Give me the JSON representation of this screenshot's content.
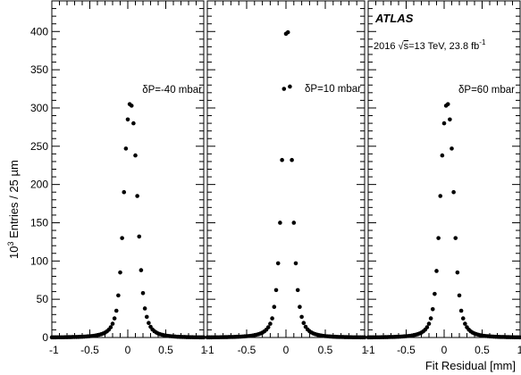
{
  "chart_data": {
    "type": "scatter",
    "ylabel_prefix": "10",
    "ylabel_exp": "3",
    "ylabel_rest": " Entries / 25 µm",
    "xlabel": "Fit Residual [mm]",
    "xlim": [
      -1,
      1
    ],
    "ylim": [
      0,
      440
    ],
    "x_ticks": [
      -1,
      -0.5,
      0,
      0.5,
      1
    ],
    "x_tick_labels": [
      "-1",
      "-0.5",
      "0",
      "0.5",
      "1"
    ],
    "y_ticks": [
      0,
      50,
      100,
      150,
      200,
      250,
      300,
      350,
      400
    ],
    "y_tick_labels": [
      "0",
      "50",
      "100",
      "150",
      "200",
      "250",
      "300",
      "350",
      "400"
    ],
    "atlas_label": "ATLAS",
    "energy_pre": "2016 ",
    "energy_sqrt": "√",
    "energy_s": "s",
    "energy_post": "=13 TeV, 23.8 fb",
    "energy_exp": "-1",
    "series": [
      {
        "name": "δP=-40 mbar",
        "points": [
          [
            -1.0,
            0.2
          ],
          [
            -0.975,
            0.2
          ],
          [
            -0.95,
            0.2
          ],
          [
            -0.925,
            0.3
          ],
          [
            -0.9,
            0.3
          ],
          [
            -0.875,
            0.3
          ],
          [
            -0.85,
            0.3
          ],
          [
            -0.825,
            0.4
          ],
          [
            -0.8,
            0.4
          ],
          [
            -0.775,
            0.5
          ],
          [
            -0.75,
            0.5
          ],
          [
            -0.725,
            0.6
          ],
          [
            -0.7,
            0.7
          ],
          [
            -0.675,
            0.7
          ],
          [
            -0.65,
            0.8
          ],
          [
            -0.625,
            0.9
          ],
          [
            -0.6,
            1.0
          ],
          [
            -0.575,
            1.1
          ],
          [
            -0.55,
            1.3
          ],
          [
            -0.525,
            1.5
          ],
          [
            -0.5,
            1.7
          ],
          [
            -0.475,
            1.9
          ],
          [
            -0.45,
            2.2
          ],
          [
            -0.425,
            2.6
          ],
          [
            -0.4,
            3.0
          ],
          [
            -0.375,
            3.6
          ],
          [
            -0.35,
            4.3
          ],
          [
            -0.325,
            5.2
          ],
          [
            -0.3,
            6.4
          ],
          [
            -0.275,
            8.0
          ],
          [
            -0.25,
            10.2
          ],
          [
            -0.225,
            13.4
          ],
          [
            -0.2,
            18.0
          ],
          [
            -0.175,
            25.0
          ],
          [
            -0.15,
            35.0
          ],
          [
            -0.125,
            55.0
          ],
          [
            -0.1,
            85.0
          ],
          [
            -0.075,
            130.0
          ],
          [
            -0.05,
            190.0
          ],
          [
            -0.025,
            247.0
          ],
          [
            0.0,
            285.0
          ],
          [
            0.025,
            305.0
          ],
          [
            0.05,
            303.0
          ],
          [
            0.075,
            280.0
          ],
          [
            0.1,
            238.0
          ],
          [
            0.125,
            185.0
          ],
          [
            0.15,
            132.0
          ],
          [
            0.175,
            88.0
          ],
          [
            0.2,
            58.0
          ],
          [
            0.225,
            38.0
          ],
          [
            0.25,
            27.0
          ],
          [
            0.275,
            19.0
          ],
          [
            0.3,
            14.0
          ],
          [
            0.325,
            10.5
          ],
          [
            0.35,
            8.2
          ],
          [
            0.375,
            6.5
          ],
          [
            0.4,
            5.2
          ],
          [
            0.425,
            4.3
          ],
          [
            0.45,
            3.6
          ],
          [
            0.475,
            3.0
          ],
          [
            0.5,
            2.5
          ],
          [
            0.525,
            2.1
          ],
          [
            0.55,
            1.8
          ],
          [
            0.575,
            1.6
          ],
          [
            0.6,
            1.4
          ],
          [
            0.625,
            1.2
          ],
          [
            0.65,
            1.0
          ],
          [
            0.675,
            0.9
          ],
          [
            0.7,
            0.8
          ],
          [
            0.725,
            0.7
          ],
          [
            0.75,
            0.6
          ],
          [
            0.775,
            0.5
          ],
          [
            0.8,
            0.5
          ],
          [
            0.825,
            0.4
          ],
          [
            0.85,
            0.4
          ],
          [
            0.875,
            0.3
          ],
          [
            0.9,
            0.3
          ],
          [
            0.925,
            0.3
          ],
          [
            0.95,
            0.2
          ],
          [
            0.975,
            0.2
          ],
          [
            1.0,
            0.2
          ]
        ]
      },
      {
        "name": "δP=10 mbar",
        "points": [
          [
            -1.0,
            0.2
          ],
          [
            -0.975,
            0.2
          ],
          [
            -0.95,
            0.2
          ],
          [
            -0.925,
            0.3
          ],
          [
            -0.9,
            0.3
          ],
          [
            -0.875,
            0.3
          ],
          [
            -0.85,
            0.3
          ],
          [
            -0.825,
            0.4
          ],
          [
            -0.8,
            0.4
          ],
          [
            -0.775,
            0.5
          ],
          [
            -0.75,
            0.5
          ],
          [
            -0.725,
            0.6
          ],
          [
            -0.7,
            0.7
          ],
          [
            -0.675,
            0.7
          ],
          [
            -0.65,
            0.8
          ],
          [
            -0.625,
            0.9
          ],
          [
            -0.6,
            1.0
          ],
          [
            -0.575,
            1.1
          ],
          [
            -0.55,
            1.3
          ],
          [
            -0.525,
            1.5
          ],
          [
            -0.5,
            1.7
          ],
          [
            -0.475,
            1.9
          ],
          [
            -0.45,
            2.2
          ],
          [
            -0.425,
            2.6
          ],
          [
            -0.4,
            3.0
          ],
          [
            -0.375,
            3.6
          ],
          [
            -0.35,
            4.3
          ],
          [
            -0.325,
            5.2
          ],
          [
            -0.3,
            6.4
          ],
          [
            -0.275,
            8.0
          ],
          [
            -0.25,
            10.2
          ],
          [
            -0.225,
            13.4
          ],
          [
            -0.2,
            18.0
          ],
          [
            -0.175,
            25.0
          ],
          [
            -0.15,
            40.0
          ],
          [
            -0.125,
            62.0
          ],
          [
            -0.1,
            97.0
          ],
          [
            -0.075,
            150.0
          ],
          [
            -0.05,
            232.0
          ],
          [
            -0.025,
            325.0
          ],
          [
            0.0,
            397.0
          ],
          [
            0.025,
            399.0
          ],
          [
            0.05,
            328.0
          ],
          [
            0.075,
            232.0
          ],
          [
            0.1,
            150.0
          ],
          [
            0.125,
            97.0
          ],
          [
            0.15,
            62.0
          ],
          [
            0.175,
            40.0
          ],
          [
            0.2,
            27.0
          ],
          [
            0.225,
            19.0
          ],
          [
            0.25,
            14.0
          ],
          [
            0.275,
            10.5
          ],
          [
            0.3,
            8.2
          ],
          [
            0.325,
            6.5
          ],
          [
            0.35,
            5.2
          ],
          [
            0.375,
            4.3
          ],
          [
            0.4,
            3.6
          ],
          [
            0.425,
            3.0
          ],
          [
            0.45,
            2.5
          ],
          [
            0.475,
            2.1
          ],
          [
            0.5,
            1.8
          ],
          [
            0.525,
            1.6
          ],
          [
            0.55,
            1.4
          ],
          [
            0.575,
            1.2
          ],
          [
            0.6,
            1.0
          ],
          [
            0.625,
            0.9
          ],
          [
            0.65,
            0.8
          ],
          [
            0.675,
            0.7
          ],
          [
            0.7,
            0.7
          ],
          [
            0.725,
            0.6
          ],
          [
            0.75,
            0.5
          ],
          [
            0.775,
            0.5
          ],
          [
            0.8,
            0.4
          ],
          [
            0.825,
            0.4
          ],
          [
            0.85,
            0.3
          ],
          [
            0.875,
            0.3
          ],
          [
            0.9,
            0.3
          ],
          [
            0.925,
            0.3
          ],
          [
            0.95,
            0.2
          ],
          [
            0.975,
            0.2
          ],
          [
            1.0,
            0.2
          ]
        ]
      },
      {
        "name": "δP=60 mbar",
        "points": [
          [
            -1.0,
            0.2
          ],
          [
            -0.975,
            0.2
          ],
          [
            -0.95,
            0.2
          ],
          [
            -0.925,
            0.3
          ],
          [
            -0.9,
            0.3
          ],
          [
            -0.875,
            0.3
          ],
          [
            -0.85,
            0.3
          ],
          [
            -0.825,
            0.4
          ],
          [
            -0.8,
            0.4
          ],
          [
            -0.775,
            0.5
          ],
          [
            -0.75,
            0.5
          ],
          [
            -0.725,
            0.6
          ],
          [
            -0.7,
            0.7
          ],
          [
            -0.675,
            0.7
          ],
          [
            -0.65,
            0.8
          ],
          [
            -0.625,
            0.9
          ],
          [
            -0.6,
            1.0
          ],
          [
            -0.575,
            1.1
          ],
          [
            -0.55,
            1.3
          ],
          [
            -0.525,
            1.5
          ],
          [
            -0.5,
            1.7
          ],
          [
            -0.475,
            1.9
          ],
          [
            -0.45,
            2.2
          ],
          [
            -0.425,
            2.6
          ],
          [
            -0.4,
            3.0
          ],
          [
            -0.375,
            3.6
          ],
          [
            -0.35,
            4.3
          ],
          [
            -0.325,
            5.2
          ],
          [
            -0.3,
            6.4
          ],
          [
            -0.275,
            8.0
          ],
          [
            -0.25,
            10.2
          ],
          [
            -0.225,
            13.4
          ],
          [
            -0.2,
            18.0
          ],
          [
            -0.175,
            25.0
          ],
          [
            -0.15,
            37.0
          ],
          [
            -0.125,
            57.0
          ],
          [
            -0.1,
            87.0
          ],
          [
            -0.075,
            130.0
          ],
          [
            -0.05,
            185.0
          ],
          [
            -0.025,
            238.0
          ],
          [
            0.0,
            280.0
          ],
          [
            0.025,
            303.0
          ],
          [
            0.05,
            305.0
          ],
          [
            0.075,
            285.0
          ],
          [
            0.1,
            247.0
          ],
          [
            0.125,
            190.0
          ],
          [
            0.15,
            130.0
          ],
          [
            0.175,
            85.0
          ],
          [
            0.2,
            55.0
          ],
          [
            0.225,
            35.0
          ],
          [
            0.25,
            25.0
          ],
          [
            0.275,
            18.0
          ],
          [
            0.3,
            13.4
          ],
          [
            0.325,
            10.2
          ],
          [
            0.35,
            8.0
          ],
          [
            0.375,
            6.4
          ],
          [
            0.4,
            5.2
          ],
          [
            0.425,
            4.3
          ],
          [
            0.45,
            3.6
          ],
          [
            0.475,
            3.0
          ],
          [
            0.5,
            2.6
          ],
          [
            0.525,
            2.2
          ],
          [
            0.55,
            1.9
          ],
          [
            0.575,
            1.7
          ],
          [
            0.6,
            1.5
          ],
          [
            0.625,
            1.3
          ],
          [
            0.65,
            1.1
          ],
          [
            0.675,
            1.0
          ],
          [
            0.7,
            0.9
          ],
          [
            0.725,
            0.8
          ],
          [
            0.75,
            0.7
          ],
          [
            0.775,
            0.7
          ],
          [
            0.8,
            0.6
          ],
          [
            0.825,
            0.5
          ],
          [
            0.85,
            0.5
          ],
          [
            0.875,
            0.4
          ],
          [
            0.9,
            0.4
          ],
          [
            0.925,
            0.3
          ],
          [
            0.95,
            0.3
          ],
          [
            0.975,
            0.3
          ],
          [
            1.0,
            0.2
          ]
        ]
      }
    ]
  }
}
